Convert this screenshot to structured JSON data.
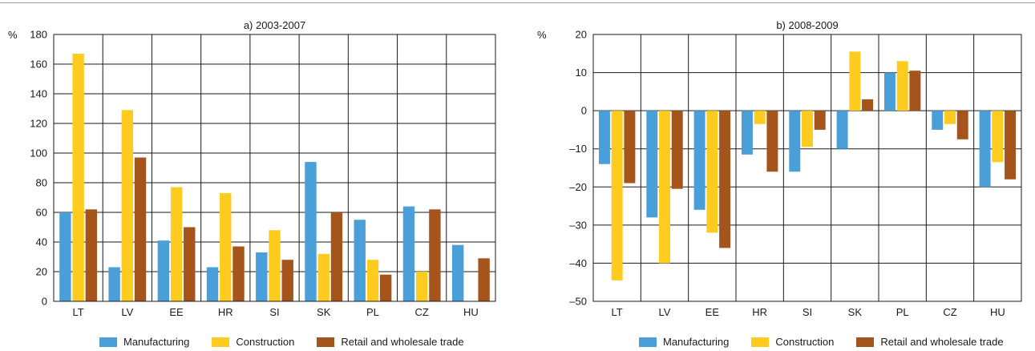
{
  "colors": {
    "manufacturing": "#4a9fd8",
    "construction": "#ffcb1f",
    "retail": "#a5541c",
    "grid": "#1a1a1a"
  },
  "chart_data": [
    {
      "type": "bar",
      "title": "a) 2003-2007",
      "ylabel": "%",
      "ylim": [
        0,
        180
      ],
      "yticks": [
        0,
        20,
        40,
        60,
        80,
        100,
        120,
        140,
        160,
        180
      ],
      "grid": true,
      "legend_position": "bottom",
      "categories": [
        "LT",
        "LV",
        "EE",
        "HR",
        "SI",
        "SK",
        "PL",
        "CZ",
        "HU"
      ],
      "series": [
        {
          "name": "Manufacturing",
          "values": [
            60,
            23,
            41,
            23,
            33,
            94,
            55,
            64,
            38
          ]
        },
        {
          "name": "Construction",
          "values": [
            167,
            129,
            77,
            73,
            48,
            32,
            28,
            20,
            0
          ]
        },
        {
          "name": "Retail and wholesale trade",
          "values": [
            62,
            97,
            50,
            37,
            28,
            60,
            18,
            62,
            29
          ]
        }
      ]
    },
    {
      "type": "bar",
      "title": "b) 2008-2009",
      "ylabel": "%",
      "ylim": [
        -50,
        20
      ],
      "yticks": [
        -50,
        -40,
        -30,
        -20,
        -10,
        0,
        10,
        20
      ],
      "grid": true,
      "legend_position": "bottom",
      "categories": [
        "LT",
        "LV",
        "EE",
        "HR",
        "SI",
        "SK",
        "PL",
        "CZ",
        "HU"
      ],
      "series": [
        {
          "name": "Manufacturing",
          "values": [
            -14,
            -28,
            -26,
            -11.5,
            -16,
            -10,
            10,
            -5,
            -20
          ]
        },
        {
          "name": "Construction",
          "values": [
            -44.5,
            -40,
            -32,
            -3.5,
            -9.5,
            15.5,
            13,
            -3.5,
            -13.5
          ]
        },
        {
          "name": "Retail and wholesale trade",
          "values": [
            -19,
            -20.5,
            -36,
            -16,
            -5,
            3,
            10.5,
            -7.5,
            -18
          ]
        }
      ]
    }
  ],
  "legend": {
    "items": [
      {
        "label": "Manufacturing",
        "color_key": "manufacturing"
      },
      {
        "label": "Construction",
        "color_key": "construction"
      },
      {
        "label": "Retail and wholesale trade",
        "color_key": "retail"
      }
    ]
  }
}
